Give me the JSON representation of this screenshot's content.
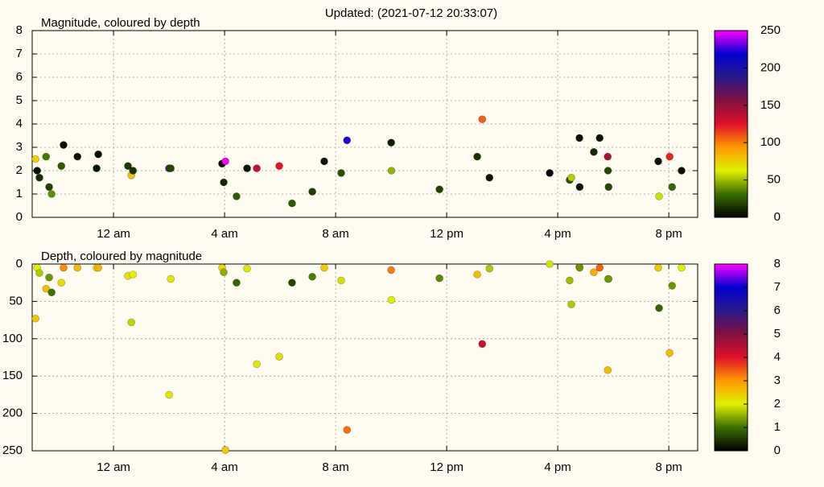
{
  "title": "Updated: (2021-07-12 20:33:07)",
  "chart_data": [
    {
      "type": "scatter",
      "title": "Magnitude, coloured by depth",
      "x": [
        -2.81,
        -2.75,
        -2.67,
        -2.43,
        -2.32,
        -2.23,
        -1.88,
        -1.8,
        -1.3,
        -0.61,
        -0.55,
        0.52,
        0.64,
        0.7,
        2.0,
        2.06,
        3.91,
        3.97,
        4.03,
        4.43,
        4.81,
        5.16,
        5.97,
        6.43,
        7.16,
        7.59,
        8.2,
        8.41,
        10.0,
        10.01,
        11.74,
        13.1,
        13.28,
        13.54,
        15.71,
        16.43,
        16.49,
        16.78,
        16.79,
        17.3,
        17.51,
        17.8,
        17.81,
        17.83,
        19.62,
        19.65,
        20.03,
        20.12,
        20.46
      ],
      "values": [
        2.5,
        2.0,
        1.7,
        2.6,
        1.3,
        1.0,
        2.2,
        3.1,
        2.6,
        2.1,
        2.7,
        2.2,
        1.8,
        2.0,
        2.1,
        2.1,
        2.3,
        1.5,
        2.4,
        0.9,
        2.1,
        2.1,
        2.2,
        0.6,
        1.1,
        2.4,
        1.9,
        3.3,
        3.2,
        2.0,
        1.2,
        2.6,
        4.2,
        1.7,
        1.9,
        1.6,
        1.7,
        3.4,
        1.3,
        2.8,
        3.4,
        2.6,
        2.0,
        1.3,
        2.4,
        0.9,
        2.6,
        1.3,
        2.0
      ],
      "color_values": [
        73,
        5,
        12,
        33,
        18,
        38,
        25,
        5,
        5,
        5,
        5,
        16,
        78,
        14,
        175,
        20,
        5,
        11,
        249,
        25,
        6,
        134,
        124,
        25,
        17,
        5,
        22,
        222,
        8,
        48,
        19,
        14,
        107,
        6,
        0,
        22,
        54,
        4,
        5,
        11,
        5,
        142,
        20,
        20,
        5,
        59,
        119,
        29,
        5
      ],
      "xlim": [
        -2.93,
        21.04
      ],
      "xticks": [
        {
          "value": 0,
          "label": "12 am"
        },
        {
          "value": 4,
          "label": "4 am"
        },
        {
          "value": 8,
          "label": "8 am"
        },
        {
          "value": 12,
          "label": "12 pm"
        },
        {
          "value": 16,
          "label": "4 pm"
        },
        {
          "value": 20,
          "label": "8 pm"
        }
      ],
      "ylim": [
        0,
        8
      ],
      "yticks": [
        0,
        1,
        2,
        3,
        4,
        5,
        6,
        7,
        8
      ],
      "y_reversed": false,
      "clim": [
        0,
        250
      ],
      "cticks": [
        0,
        50,
        100,
        150,
        200,
        250
      ],
      "colormap": [
        "#000000",
        "#3a7000",
        "#e0f000",
        "#ff9a00",
        "#e0102a",
        "#801040",
        "#2a1a8a",
        "#0000d0",
        "#ff00ff"
      ],
      "grid": true
    },
    {
      "type": "scatter",
      "title": "Depth, coloured by magnitude",
      "x": [
        -2.81,
        -2.75,
        -2.67,
        -2.43,
        -2.32,
        -2.23,
        -1.88,
        -1.8,
        -1.3,
        -0.61,
        -0.55,
        0.52,
        0.64,
        0.7,
        2.0,
        2.06,
        3.91,
        3.97,
        4.03,
        4.43,
        4.81,
        5.16,
        5.97,
        6.43,
        7.16,
        7.59,
        8.2,
        8.41,
        10.0,
        10.01,
        11.74,
        13.1,
        13.28,
        13.54,
        15.71,
        16.43,
        16.49,
        16.78,
        16.79,
        17.3,
        17.51,
        17.8,
        17.81,
        17.83,
        19.62,
        19.65,
        20.03,
        20.12,
        20.46
      ],
      "values": [
        73,
        5,
        12,
        33,
        18,
        38,
        25,
        5,
        5,
        5,
        5,
        16,
        78,
        14,
        175,
        20,
        5,
        11,
        249,
        25,
        6,
        134,
        124,
        25,
        17,
        5,
        22,
        222,
        8,
        48,
        19,
        14,
        107,
        6,
        0,
        22,
        54,
        4,
        5,
        11,
        5,
        142,
        20,
        20,
        5,
        59,
        119,
        29,
        5
      ],
      "color_values": [
        2.5,
        2.0,
        1.7,
        2.6,
        1.3,
        1.0,
        2.2,
        3.1,
        2.6,
        2.1,
        2.7,
        2.2,
        1.8,
        2.0,
        2.1,
        2.1,
        2.3,
        1.5,
        2.4,
        0.9,
        2.1,
        2.1,
        2.2,
        0.6,
        1.1,
        2.4,
        1.9,
        3.3,
        3.2,
        2.0,
        1.2,
        2.6,
        4.2,
        1.7,
        1.9,
        1.6,
        1.7,
        3.4,
        1.3,
        2.8,
        3.4,
        2.6,
        2.0,
        1.3,
        2.4,
        0.9,
        2.6,
        1.3,
        2.0
      ],
      "xlim": [
        -2.93,
        21.04
      ],
      "xticks": [
        {
          "value": 0,
          "label": "12 am"
        },
        {
          "value": 4,
          "label": "4 am"
        },
        {
          "value": 8,
          "label": "8 am"
        },
        {
          "value": 12,
          "label": "12 pm"
        },
        {
          "value": 16,
          "label": "4 pm"
        },
        {
          "value": 20,
          "label": "8 pm"
        }
      ],
      "ylim": [
        0,
        250
      ],
      "yticks": [
        0,
        50,
        100,
        150,
        200,
        250
      ],
      "y_reversed": true,
      "clim": [
        0,
        8
      ],
      "cticks": [
        0,
        1,
        2,
        3,
        4,
        5,
        6,
        7,
        8
      ],
      "colormap": [
        "#000000",
        "#3a7000",
        "#e0f000",
        "#ff9a00",
        "#e0102a",
        "#801040",
        "#2a1a8a",
        "#0000d0",
        "#ff00ff"
      ],
      "grid": true
    }
  ]
}
